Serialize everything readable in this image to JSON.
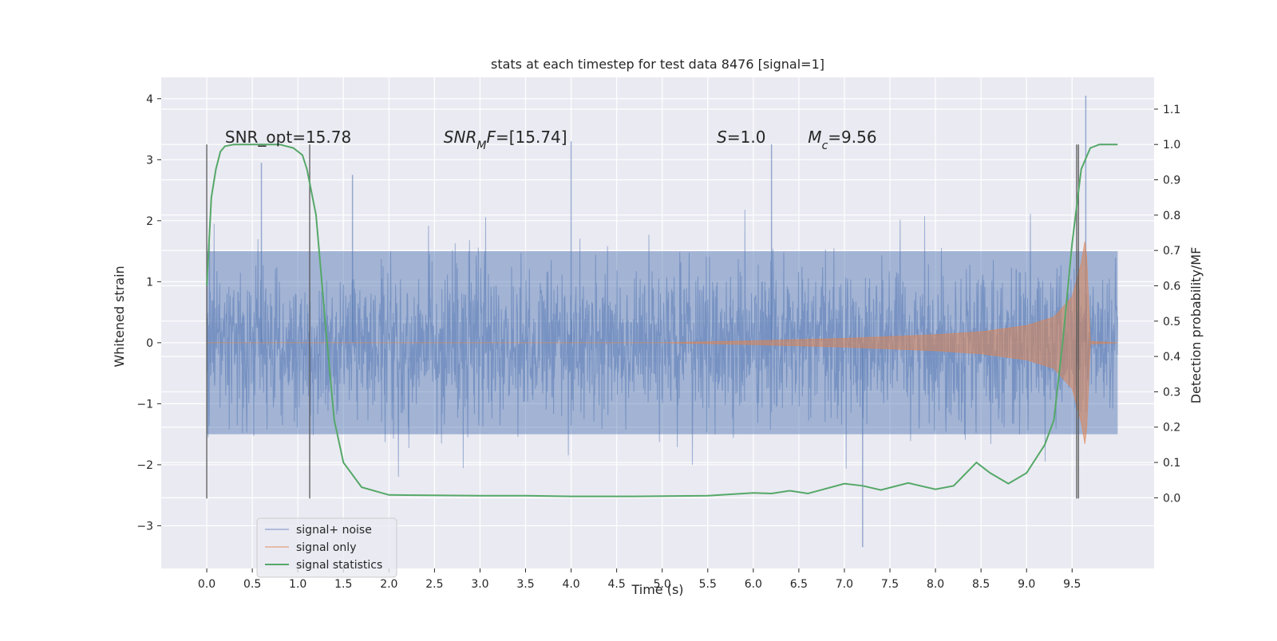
{
  "chart_data": {
    "type": "line",
    "title": "stats at each timestep for test data 8476 [signal=1]",
    "xlabel": "Time (s)",
    "ylabel": "Whitened strain",
    "ylabel_right": "Detection probability/MF",
    "xlim": [
      -0.5,
      10.4
    ],
    "ylim": [
      -3.7,
      4.35
    ],
    "ylim_right": [
      -0.2,
      1.19
    ],
    "x_ticks": [
      0.0,
      0.5,
      1.0,
      1.5,
      2.0,
      2.5,
      3.0,
      3.5,
      4.0,
      4.5,
      5.0,
      5.5,
      6.0,
      6.5,
      7.0,
      7.5,
      8.0,
      8.5,
      9.0,
      9.5
    ],
    "x_tick_labels": [
      "0.0",
      "0.5",
      "1.0",
      "1.5",
      "2.0",
      "2.5",
      "3.0",
      "3.5",
      "4.0",
      "4.5",
      "5.0",
      "5.5",
      "6.0",
      "6.5",
      "7.0",
      "7.5",
      "8.0",
      "8.5",
      "9.0",
      "9.5"
    ],
    "y_ticks": [
      -3,
      -2,
      -1,
      0,
      1,
      2,
      3,
      4
    ],
    "y_tick_labels": [
      "−3",
      "−2",
      "−1",
      "0",
      "1",
      "2",
      "3",
      "4"
    ],
    "y_ticks_right": [
      0.0,
      0.1,
      0.2,
      0.3,
      0.4,
      0.5,
      0.6,
      0.7,
      0.8,
      0.9,
      1.0,
      1.1
    ],
    "y_tick_labels_right": [
      "0.0",
      "0.1",
      "0.2",
      "0.3",
      "0.4",
      "0.5",
      "0.6",
      "0.7",
      "0.8",
      "0.9",
      "1.0",
      "1.1"
    ],
    "grid": true,
    "legend_position": "lower-left",
    "colors": {
      "background": "#eaeaf2",
      "grid": "#ffffff",
      "noise": "#4c72b0",
      "signal": "#dd8452",
      "statistic": "#55a868",
      "vline": "#555555"
    },
    "annotations": [
      {
        "text": "SNR_opt=15.78",
        "x": 0.2,
        "y_right": 1.0
      },
      {
        "text": "SNRMF=[15.74]",
        "x": 2.6,
        "y_right": 1.0
      },
      {
        "text": "S=1.0",
        "x": 5.6,
        "y_right": 1.0
      },
      {
        "text": "Mc=9.56",
        "x": 6.6,
        "y_right": 1.0
      }
    ],
    "vertical_lines": [
      0.0,
      1.13,
      9.55,
      9.57
    ],
    "series": [
      {
        "name": "signal+ noise",
        "kind": "noise",
        "x_range": [
          0.0,
          10.0
        ],
        "envelope_y": [
          -1.5,
          1.5
        ],
        "spike_peaks_x": [
          0.6,
          1.6,
          4.0,
          6.2,
          7.2,
          9.65
        ],
        "spike_peaks_y": [
          2.95,
          2.75,
          3.3,
          3.25,
          -3.35,
          4.05
        ]
      },
      {
        "name": "signal only",
        "kind": "chirp",
        "x": [
          0.0,
          5.0,
          6.0,
          7.0,
          8.0,
          8.5,
          9.0,
          9.3,
          9.5,
          9.6,
          9.65,
          9.7,
          10.0
        ],
        "amplitude": [
          0.0,
          0.0,
          0.03,
          0.07,
          0.13,
          0.18,
          0.28,
          0.42,
          0.75,
          1.3,
          1.75,
          0.02,
          0.0
        ]
      },
      {
        "name": "signal statistics",
        "kind": "probability",
        "x": [
          0.0,
          0.05,
          0.1,
          0.15,
          0.2,
          0.3,
          0.5,
          0.8,
          0.95,
          1.05,
          1.1,
          1.2,
          1.3,
          1.4,
          1.5,
          1.7,
          2.0,
          3.0,
          3.5,
          4.0,
          4.7,
          5.5,
          6.0,
          6.2,
          6.4,
          6.6,
          7.0,
          7.2,
          7.4,
          7.7,
          8.0,
          8.2,
          8.45,
          8.6,
          8.8,
          9.0,
          9.2,
          9.3,
          9.4,
          9.5,
          9.6,
          9.7,
          9.8,
          10.0
        ],
        "y": [
          0.6,
          0.85,
          0.93,
          0.98,
          0.995,
          1.0,
          1.0,
          1.0,
          0.99,
          0.97,
          0.93,
          0.8,
          0.5,
          0.22,
          0.1,
          0.03,
          0.008,
          0.006,
          0.006,
          0.004,
          0.004,
          0.006,
          0.014,
          0.012,
          0.02,
          0.012,
          0.04,
          0.034,
          0.022,
          0.042,
          0.024,
          0.034,
          0.1,
          0.07,
          0.04,
          0.07,
          0.15,
          0.22,
          0.45,
          0.72,
          0.93,
          0.99,
          1.0,
          1.0
        ]
      }
    ]
  }
}
